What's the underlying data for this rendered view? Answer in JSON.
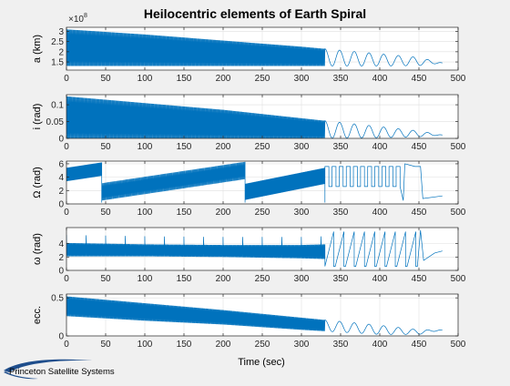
{
  "figure": {
    "title": "Heilocentric elements of Earth Spiral",
    "xlabel": "Time (sec)",
    "logo_text": "Princeton Satellite Systems",
    "exponent_text": "8"
  },
  "colors": {
    "background": "#f0f0f0",
    "axes_background": "#ffffff",
    "line": "#0072bd",
    "axis": "#262626",
    "grid": "#dfdfdf",
    "logo": "#1f4e8c"
  },
  "chart_data": [
    {
      "type": "line",
      "title": "Heilocentric elements of Earth Spiral",
      "ylabel": "a (km)",
      "xlim": [
        0,
        500
      ],
      "ylim": [
        110000000.0,
        320000000.0
      ],
      "xticks": [
        0,
        50,
        100,
        150,
        200,
        250,
        300,
        350,
        400,
        450,
        500
      ],
      "xtick_labels": [
        "0",
        "50",
        "100",
        "150",
        "200",
        "250",
        "300",
        "350",
        "400",
        "450",
        "500"
      ],
      "yticks": [
        150000000.0,
        200000000.0,
        250000000.0,
        300000000.0
      ],
      "ytick_labels": [
        "1.5",
        "2",
        "2.5",
        "3"
      ],
      "y_multiplier": "x10^8",
      "grid": true,
      "series": [
        {
          "style": "oscillating-decaying",
          "x_end": 480,
          "envelope_x": [
            0,
            100,
            200,
            300,
            400,
            450,
            480
          ],
          "envelope_max": [
            310000000.0,
            285000000.0,
            255000000.0,
            225000000.0,
            190000000.0,
            172000000.0,
            145000000.0
          ],
          "envelope_min": [
            130000000.0,
            130000000.0,
            130000000.0,
            130000000.0,
            130000000.0,
            132000000.0,
            145000000.0
          ],
          "dense_until": 330,
          "tail_periods": 8
        }
      ]
    },
    {
      "type": "line",
      "ylabel": "i (rad)",
      "xlim": [
        0,
        500
      ],
      "ylim": [
        0,
        0.13
      ],
      "xticks": [
        0,
        50,
        100,
        150,
        200,
        250,
        300,
        350,
        400,
        450,
        500
      ],
      "xtick_labels": [
        "0",
        "50",
        "100",
        "150",
        "200",
        "250",
        "300",
        "350",
        "400",
        "450",
        "500"
      ],
      "yticks": [
        0,
        0.05,
        0.1
      ],
      "ytick_labels": [
        "0",
        "0.05",
        "0.1"
      ],
      "grid": true,
      "series": [
        {
          "style": "oscillating-decaying",
          "x_end": 480,
          "envelope_x": [
            0,
            100,
            200,
            300,
            400,
            450,
            480
          ],
          "envelope_max": [
            0.125,
            0.105,
            0.085,
            0.06,
            0.035,
            0.022,
            0.01
          ],
          "envelope_min": [
            0,
            0,
            0,
            0,
            0.002,
            0.005,
            0.01
          ],
          "dense_until": 330,
          "tail_periods": 8
        }
      ]
    },
    {
      "type": "line",
      "ylabel": "Ω (rad)",
      "xlim": [
        0,
        500
      ],
      "ylim": [
        0,
        6.4
      ],
      "xticks": [
        0,
        50,
        100,
        150,
        200,
        250,
        300,
        350,
        400,
        450,
        500
      ],
      "xtick_labels": [
        "0",
        "50",
        "100",
        "150",
        "200",
        "250",
        "300",
        "350",
        "400",
        "450",
        "500"
      ],
      "yticks": [
        0,
        2,
        4,
        6
      ],
      "ytick_labels": [
        "0",
        "2",
        "4",
        "6"
      ],
      "grid": true,
      "series": [
        {
          "style": "drifting-bands",
          "x_end": 480,
          "segments": [
            {
              "x0": 0,
              "x1": 45,
              "center0": 4.4,
              "center1": 5.2,
              "amp": 1.0
            },
            {
              "x0": 45,
              "x1": 228,
              "center0": 1.8,
              "center1": 5.0,
              "amp": 1.3
            },
            {
              "x0": 228,
              "x1": 330,
              "center0": 1.8,
              "center1": 4.2,
              "amp": 1.2
            }
          ],
          "square_wave": {
            "x0": 330,
            "x1": 430,
            "low": 2.6,
            "high": 5.6,
            "periods": 11
          },
          "tail": [
            [
              430,
              0.5
            ],
            [
              432,
              6.0
            ],
            [
              445,
              5.6
            ],
            [
              452,
              5.6
            ],
            [
              455,
              0.8
            ],
            [
              480,
              1.2
            ]
          ]
        }
      ]
    },
    {
      "type": "line",
      "ylabel": "ω (rad)",
      "xlim": [
        0,
        500
      ],
      "ylim": [
        0,
        6.4
      ],
      "xticks": [
        0,
        50,
        100,
        150,
        200,
        250,
        300,
        350,
        400,
        450,
        500
      ],
      "xtick_labels": [
        "0",
        "50",
        "100",
        "150",
        "200",
        "250",
        "300",
        "350",
        "400",
        "450",
        "500"
      ],
      "yticks": [
        0,
        2,
        4
      ],
      "ytick_labels": [
        "0",
        "2",
        "4"
      ],
      "grid": true,
      "series": [
        {
          "style": "band-sawtooth",
          "x_end": 480,
          "band_x": [
            0,
            100,
            200,
            300,
            330
          ],
          "band_center": [
            3.1,
            3.0,
            2.9,
            2.8,
            2.8
          ],
          "band_amp": [
            1.0,
            0.9,
            0.9,
            1.0,
            1.1
          ],
          "dense_until": 330,
          "saw_periods": 9,
          "saw_low": 0.6,
          "saw_high": 5.8,
          "tail": [
            [
              448,
              0.6
            ],
            [
              452,
              6.0
            ],
            [
              456,
              1.5
            ],
            [
              470,
              2.6
            ],
            [
              480,
              2.9
            ]
          ]
        }
      ]
    },
    {
      "type": "line",
      "ylabel": "ecc.",
      "xlim": [
        0,
        500
      ],
      "ylim": [
        0,
        0.55
      ],
      "xticks": [
        0,
        50,
        100,
        150,
        200,
        250,
        300,
        350,
        400,
        450,
        500
      ],
      "xtick_labels": [
        "0",
        "50",
        "100",
        "150",
        "200",
        "250",
        "300",
        "350",
        "400",
        "450",
        "500"
      ],
      "yticks": [
        0,
        0.5
      ],
      "ytick_labels": [
        "0",
        "0.5"
      ],
      "xlabel": "Time (sec)",
      "grid": true,
      "series": [
        {
          "style": "oscillating-decaying",
          "x_end": 480,
          "envelope_x": [
            0,
            100,
            200,
            300,
            400,
            450,
            480
          ],
          "envelope_max": [
            0.52,
            0.43,
            0.34,
            0.24,
            0.14,
            0.08,
            0.08
          ],
          "envelope_min": [
            0.26,
            0.2,
            0.15,
            0.08,
            0.02,
            0.02,
            0.08
          ],
          "dense_until": 330,
          "tail_periods": 8
        }
      ]
    }
  ]
}
